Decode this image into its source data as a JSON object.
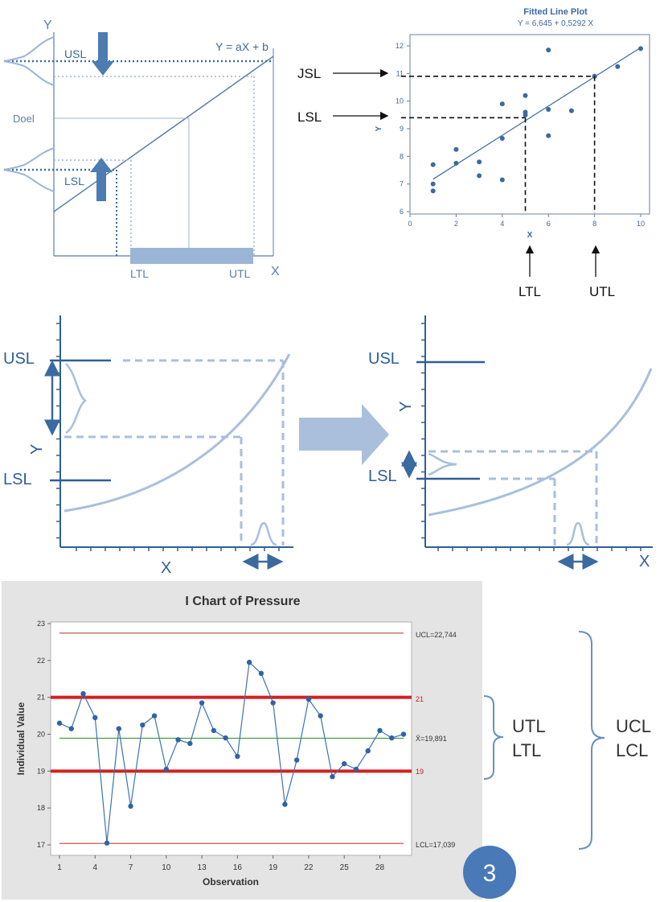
{
  "panel_tl": {
    "y_label": "Y",
    "x_label": "X",
    "usl": "USL",
    "lsl": "LSL",
    "doel": "Doel",
    "equation": "Y = aX + b",
    "ltl": "LTL",
    "utl": "UTL"
  },
  "panel_tr": {
    "title": "Fitted Line Plot",
    "equation": "Y =  6,645 + 0,5292 X",
    "x_label": "X",
    "y_label": "Y",
    "jsl": "JSL",
    "lsl": "LSL",
    "ltl": "LTL",
    "utl": "UTL"
  },
  "panel_ml": {
    "usl": "USL",
    "lsl": "LSL",
    "y_label": "Y",
    "x_label": "X"
  },
  "panel_mr": {
    "usl": "USL",
    "lsl": "LSL",
    "y_label": "Y",
    "x_label": "X"
  },
  "panel_b": {
    "title": "I Chart of Pressure",
    "y_label": "Individual Value",
    "x_label": "Observation",
    "ucl_label": "UCL=22,744",
    "lcl_label": "LCL=17,039",
    "mean_label": "X̄=19,891",
    "upper_tol_label": "21",
    "lower_tol_label": "19",
    "bracket1_line1": "UTL",
    "bracket1_line2": "LTL",
    "bracket2_line1": "UCL",
    "bracket2_line2": "LCL",
    "badge": "3"
  },
  "chart_data": [
    {
      "type": "scatter",
      "title": "Fitted Line Plot",
      "subtitle": "Y =  6,645 + 0,5292 X",
      "xlabel": "X",
      "ylabel": "Y",
      "xlim": [
        0,
        10
      ],
      "ylim": [
        6,
        12
      ],
      "xticks": [
        0,
        2,
        4,
        6,
        8,
        10
      ],
      "yticks": [
        6,
        7,
        8,
        9,
        10,
        11,
        12
      ],
      "points": [
        [
          1,
          6.75
        ],
        [
          1,
          7.0
        ],
        [
          1,
          7.7
        ],
        [
          2,
          7.75
        ],
        [
          2,
          8.25
        ],
        [
          3,
          7.3
        ],
        [
          3,
          7.8
        ],
        [
          4,
          7.15
        ],
        [
          4,
          8.65
        ],
        [
          4,
          9.9
        ],
        [
          5,
          9.5
        ],
        [
          5,
          9.6
        ],
        [
          5,
          10.2
        ],
        [
          6,
          8.75
        ],
        [
          6,
          9.7
        ],
        [
          6,
          11.85
        ],
        [
          7,
          9.65
        ],
        [
          8,
          10.9
        ],
        [
          9,
          11.25
        ],
        [
          10,
          11.9
        ]
      ],
      "fit": {
        "intercept": 6.645,
        "slope": 0.5292
      },
      "reference": {
        "jsl_y": 10.9,
        "lsl_y": 9.4,
        "ltl_x": 5,
        "utl_x": 8
      }
    },
    {
      "type": "line",
      "title": "I Chart of Pressure",
      "xlabel": "Observation",
      "ylabel": "Individual Value",
      "xlim": [
        1,
        30
      ],
      "ylim": [
        17,
        23
      ],
      "xticks": [
        1,
        4,
        7,
        10,
        13,
        16,
        19,
        22,
        25,
        28
      ],
      "yticks": [
        17,
        18,
        19,
        20,
        21,
        22,
        23
      ],
      "values": [
        20.3,
        20.15,
        21.1,
        20.45,
        17.05,
        20.15,
        18.05,
        20.25,
        20.5,
        19.05,
        19.85,
        19.75,
        20.85,
        20.1,
        19.9,
        19.4,
        21.95,
        21.65,
        20.85,
        18.1,
        19.3,
        20.95,
        20.5,
        18.85,
        19.2,
        19.05,
        19.55,
        20.1,
        19.9,
        20.0
      ],
      "ucl": 22.744,
      "lcl": 17.039,
      "mean": 19.891,
      "upper_tolerance": 21,
      "lower_tolerance": 19
    }
  ]
}
